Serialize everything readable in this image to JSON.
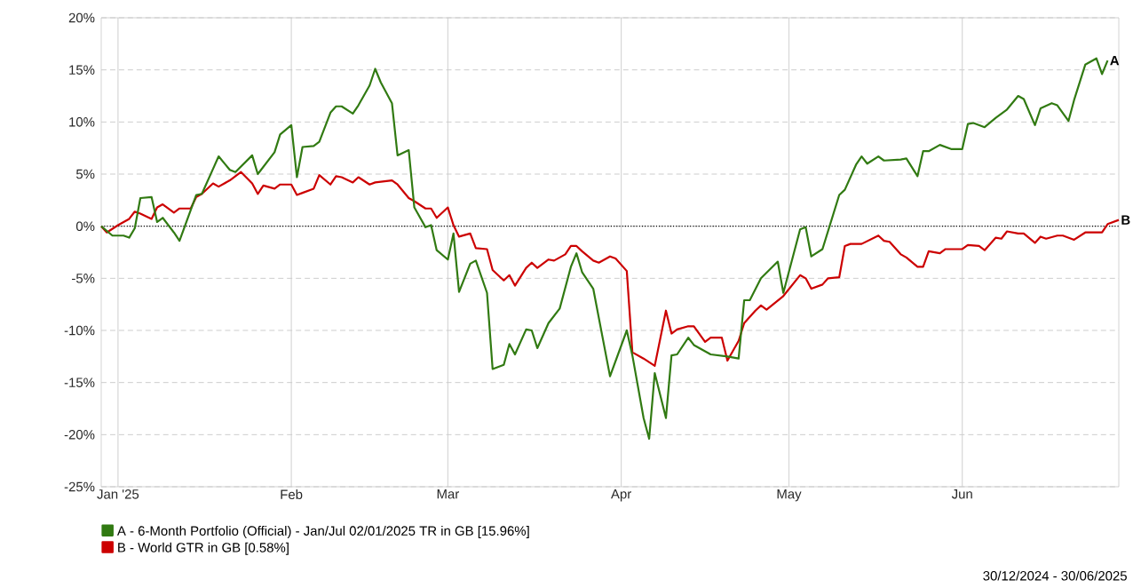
{
  "chart_data": {
    "type": "line",
    "xlim": [
      "2024-12-29",
      "2025-06-29"
    ],
    "xticks": [
      {
        "value": "2025-01-01",
        "label": "Jan '25"
      },
      {
        "value": "2025-02-01",
        "label": "Feb"
      },
      {
        "value": "2025-03-01",
        "label": "Mar"
      },
      {
        "value": "2025-04-01",
        "label": "Apr"
      },
      {
        "value": "2025-05-01",
        "label": "May"
      },
      {
        "value": "2025-06-01",
        "label": "Jun"
      }
    ],
    "ylim": [
      -25,
      20
    ],
    "yticks": [
      {
        "value": -25,
        "label": "-25%"
      },
      {
        "value": -20,
        "label": "-20%"
      },
      {
        "value": -15,
        "label": "-15%"
      },
      {
        "value": -10,
        "label": "-10%"
      },
      {
        "value": -5,
        "label": "-5%"
      },
      {
        "value": 0,
        "label": "0%"
      },
      {
        "value": 5,
        "label": "5%"
      },
      {
        "value": 10,
        "label": "10%"
      },
      {
        "value": 15,
        "label": "15%"
      },
      {
        "value": 20,
        "label": "20%"
      }
    ],
    "grid": true,
    "legend": "bottom left",
    "ref_lines": [
      {
        "axis": "y",
        "value": 0,
        "color": "#000000",
        "line_style": "dotted"
      }
    ],
    "annotations": [
      {
        "text": "A",
        "x": "2025-06-27",
        "y": 15.9
      },
      {
        "text": "B",
        "x": "2025-06-29",
        "y": 0.6
      },
      "30/12/2024 - 30/06/2025"
    ],
    "series": [
      {
        "name": "A - 6-Month Portfolio (Official) - Jan/Jul 02/01/2025 TR in GB [15.96%]",
        "color": "#317a12",
        "x": [
          "2024-12-29",
          "2024-12-31",
          "2025-01-02",
          "2025-01-03",
          "2025-01-04",
          "2025-01-05",
          "2025-01-07",
          "2025-01-08",
          "2025-01-09",
          "2025-01-11",
          "2025-01-12",
          "2025-01-15",
          "2025-01-16",
          "2025-01-18",
          "2025-01-19",
          "2025-01-21",
          "2025-01-22",
          "2025-01-25",
          "2025-01-26",
          "2025-01-29",
          "2025-01-30",
          "2025-02-01",
          "2025-02-02",
          "2025-02-03",
          "2025-02-05",
          "2025-02-06",
          "2025-02-08",
          "2025-02-09",
          "2025-02-10",
          "2025-02-12",
          "2025-02-13",
          "2025-02-15",
          "2025-02-16",
          "2025-02-17",
          "2025-02-19",
          "2025-02-20",
          "2025-02-22",
          "2025-02-23",
          "2025-02-25",
          "2025-02-26",
          "2025-02-27",
          "2025-03-01",
          "2025-03-02",
          "2025-03-03",
          "2025-03-05",
          "2025-03-06",
          "2025-03-08",
          "2025-03-09",
          "2025-03-11",
          "2025-03-12",
          "2025-03-13",
          "2025-03-15",
          "2025-03-16",
          "2025-03-17",
          "2025-03-19",
          "2025-03-21",
          "2025-03-23",
          "2025-03-24",
          "2025-03-25",
          "2025-03-27",
          "2025-03-30",
          "2025-04-02",
          "2025-04-03",
          "2025-04-05",
          "2025-04-06",
          "2025-04-07",
          "2025-04-09",
          "2025-04-10",
          "2025-04-11",
          "2025-04-13",
          "2025-04-14",
          "2025-04-16",
          "2025-04-17",
          "2025-04-20",
          "2025-04-22",
          "2025-04-23",
          "2025-04-24",
          "2025-04-26",
          "2025-04-29",
          "2025-04-30",
          "2025-05-03",
          "2025-05-04",
          "2025-05-05",
          "2025-05-07",
          "2025-05-10",
          "2025-05-11",
          "2025-05-13",
          "2025-05-14",
          "2025-05-15",
          "2025-05-17",
          "2025-05-18",
          "2025-05-21",
          "2025-05-22",
          "2025-05-24",
          "2025-05-25",
          "2025-05-26",
          "2025-05-28",
          "2025-05-30",
          "2025-06-01",
          "2025-06-02",
          "2025-06-03",
          "2025-06-05",
          "2025-06-07",
          "2025-06-09",
          "2025-06-11",
          "2025-06-12",
          "2025-06-14",
          "2025-06-15",
          "2025-06-17",
          "2025-06-18",
          "2025-06-20",
          "2025-06-21",
          "2025-06-23",
          "2025-06-25",
          "2025-06-26",
          "2025-06-27"
        ],
        "values": [
          0,
          -0.9,
          -0.9,
          -1.1,
          -0.2,
          2.7,
          2.8,
          0.4,
          0.8,
          -0.6,
          -1.4,
          3.0,
          3.1,
          5.5,
          6.7,
          5.4,
          5.2,
          6.8,
          5.0,
          7.1,
          8.8,
          9.7,
          4.7,
          7.6,
          7.7,
          8.1,
          10.9,
          11.5,
          11.5,
          10.8,
          11.6,
          13.5,
          15.1,
          13.8,
          11.8,
          6.8,
          7.3,
          1.8,
          -0.1,
          0.1,
          -2.3,
          -3.2,
          -0.7,
          -6.3,
          -3.6,
          -3.3,
          -6.4,
          -13.7,
          -13.3,
          -11.3,
          -12.3,
          -9.9,
          -10.0,
          -11.7,
          -9.3,
          -7.9,
          -3.9,
          -2.6,
          -4.4,
          -6.0,
          -14.4,
          -10.0,
          -12.4,
          -18.4,
          -20.4,
          -14.1,
          -18.4,
          -12.4,
          -12.3,
          -10.7,
          -11.4,
          -12.0,
          -12.3,
          -12.5,
          -12.7,
          -7.1,
          -7.1,
          -5.0,
          -3.4,
          -6.4,
          -0.3,
          -0.1,
          -2.9,
          -2.2,
          3.0,
          3.5,
          5.9,
          6.7,
          6.0,
          6.7,
          6.3,
          6.4,
          6.5,
          4.8,
          7.2,
          7.2,
          7.8,
          7.4,
          7.4,
          9.8,
          9.9,
          9.5,
          10.4,
          11.2,
          12.5,
          12.2,
          9.7,
          11.3,
          11.8,
          11.6,
          10.1,
          12.1,
          15.5,
          16.1,
          14.6,
          15.9
        ]
      },
      {
        "name": "B - World GTR in GB [0.58%]",
        "color": "#cc0000",
        "x": [
          "2024-12-29",
          "2024-12-30",
          "2025-01-01",
          "2025-01-03",
          "2025-01-04",
          "2025-01-05",
          "2025-01-07",
          "2025-01-08",
          "2025-01-09",
          "2025-01-11",
          "2025-01-12",
          "2025-01-14",
          "2025-01-15",
          "2025-01-16",
          "2025-01-18",
          "2025-01-19",
          "2025-01-21",
          "2025-01-23",
          "2025-01-25",
          "2025-01-26",
          "2025-01-27",
          "2025-01-29",
          "2025-01-30",
          "2025-02-01",
          "2025-02-02",
          "2025-02-03",
          "2025-02-05",
          "2025-02-06",
          "2025-02-08",
          "2025-02-09",
          "2025-02-10",
          "2025-02-12",
          "2025-02-13",
          "2025-02-15",
          "2025-02-16",
          "2025-02-19",
          "2025-02-20",
          "2025-02-22",
          "2025-02-23",
          "2025-02-25",
          "2025-02-26",
          "2025-02-27",
          "2025-03-01",
          "2025-03-02",
          "2025-03-03",
          "2025-03-05",
          "2025-03-06",
          "2025-03-08",
          "2025-03-09",
          "2025-03-11",
          "2025-03-12",
          "2025-03-13",
          "2025-03-15",
          "2025-03-16",
          "2025-03-17",
          "2025-03-19",
          "2025-03-20",
          "2025-03-22",
          "2025-03-23",
          "2025-03-24",
          "2025-03-25",
          "2025-03-27",
          "2025-03-28",
          "2025-03-30",
          "2025-03-31",
          "2025-04-02",
          "2025-04-03",
          "2025-04-05",
          "2025-04-07",
          "2025-04-09",
          "2025-04-10",
          "2025-04-11",
          "2025-04-13",
          "2025-04-14",
          "2025-04-16",
          "2025-04-17",
          "2025-04-19",
          "2025-04-20",
          "2025-04-22",
          "2025-04-23",
          "2025-04-25",
          "2025-04-26",
          "2025-04-27",
          "2025-04-30",
          "2025-05-03",
          "2025-05-04",
          "2025-05-05",
          "2025-05-07",
          "2025-05-08",
          "2025-05-10",
          "2025-05-11",
          "2025-05-12",
          "2025-05-14",
          "2025-05-17",
          "2025-05-18",
          "2025-05-19",
          "2025-05-21",
          "2025-05-22",
          "2025-05-24",
          "2025-05-25",
          "2025-05-26",
          "2025-05-28",
          "2025-05-29",
          "2025-06-01",
          "2025-06-02",
          "2025-06-04",
          "2025-06-05",
          "2025-06-07",
          "2025-06-08",
          "2025-06-09",
          "2025-06-11",
          "2025-06-12",
          "2025-06-14",
          "2025-06-15",
          "2025-06-16",
          "2025-06-18",
          "2025-06-19",
          "2025-06-21",
          "2025-06-23",
          "2025-06-26",
          "2025-06-27",
          "2025-06-29"
        ],
        "values": [
          0,
          -0.6,
          0.1,
          0.7,
          1.4,
          1.2,
          0.7,
          1.8,
          2.1,
          1.3,
          1.7,
          1.7,
          2.8,
          3.1,
          4.1,
          3.8,
          4.4,
          5.2,
          4.1,
          3.1,
          3.9,
          3.6,
          4.0,
          4.0,
          3.0,
          3.2,
          3.6,
          4.9,
          4.0,
          4.8,
          4.7,
          4.2,
          4.7,
          4.0,
          4.2,
          4.4,
          4.0,
          2.7,
          2.4,
          1.7,
          1.7,
          0.8,
          1.8,
          0.1,
          -1.0,
          -0.7,
          -2.1,
          -2.2,
          -4.2,
          -5.2,
          -4.7,
          -5.7,
          -4.0,
          -3.5,
          -4.0,
          -3.2,
          -3.3,
          -2.7,
          -1.9,
          -1.9,
          -2.4,
          -3.3,
          -3.5,
          -2.9,
          -3.1,
          -4.3,
          -12.1,
          -12.7,
          -13.4,
          -8.1,
          -10.3,
          -9.9,
          -9.6,
          -9.6,
          -11.1,
          -10.7,
          -10.7,
          -12.9,
          -11.0,
          -9.3,
          -8.1,
          -7.6,
          -8.0,
          -6.7,
          -4.7,
          -5.0,
          -6.0,
          -5.6,
          -5.0,
          -4.9,
          -1.9,
          -1.7,
          -1.7,
          -0.9,
          -1.4,
          -1.5,
          -2.7,
          -3.0,
          -3.9,
          -3.9,
          -2.4,
          -2.6,
          -2.2,
          -2.2,
          -1.8,
          -1.9,
          -2.3,
          -1.1,
          -1.2,
          -0.5,
          -0.7,
          -0.7,
          -1.6,
          -1.0,
          -1.2,
          -0.9,
          -0.9,
          -1.3,
          -0.6,
          -0.6,
          0.2,
          0.6
        ]
      }
    ]
  }
}
